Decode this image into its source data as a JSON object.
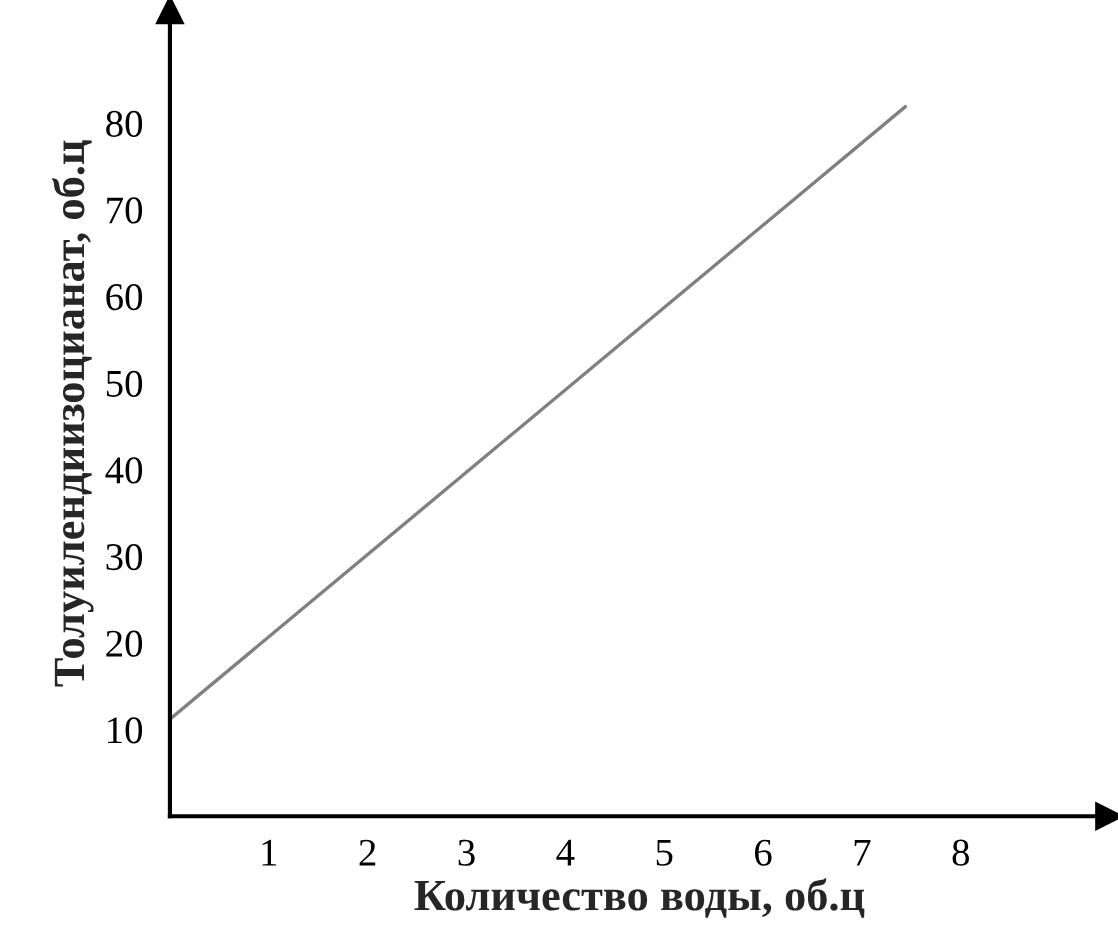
{
  "chart_data": {
    "type": "line",
    "xlabel": "Количество воды, об.ц",
    "ylabel": "Толуилендиизоцианат, об.ц",
    "x": [
      0,
      7.44
    ],
    "series": [
      {
        "color": "#808080",
        "values": [
          11.2,
          81.9
        ]
      }
    ],
    "xlim": [
      0,
      9.5
    ],
    "ylim": [
      0,
      93
    ],
    "xticks": [
      1,
      2,
      3,
      4,
      5,
      6,
      7,
      8
    ],
    "yticks": [
      10,
      20,
      30,
      40,
      50,
      60,
      70,
      80
    ],
    "grid": false,
    "legend": false,
    "marker": "none",
    "line_style": "solid"
  }
}
